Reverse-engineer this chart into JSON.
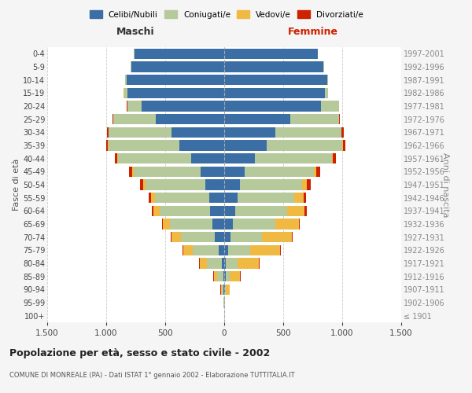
{
  "age_groups": [
    "100+",
    "95-99",
    "90-94",
    "85-89",
    "80-84",
    "75-79",
    "70-74",
    "65-69",
    "60-64",
    "55-59",
    "50-54",
    "45-49",
    "40-44",
    "35-39",
    "30-34",
    "25-29",
    "20-24",
    "15-19",
    "10-14",
    "5-9",
    "0-4"
  ],
  "birth_years": [
    "≤ 1901",
    "1902-1906",
    "1907-1911",
    "1912-1916",
    "1917-1921",
    "1922-1926",
    "1927-1931",
    "1932-1936",
    "1937-1941",
    "1942-1946",
    "1947-1951",
    "1952-1956",
    "1957-1961",
    "1962-1966",
    "1967-1971",
    "1972-1976",
    "1977-1981",
    "1982-1986",
    "1987-1991",
    "1992-1996",
    "1997-2001"
  ],
  "maschi": {
    "celibi": [
      2,
      2,
      5,
      10,
      20,
      50,
      80,
      100,
      120,
      130,
      160,
      200,
      280,
      380,
      450,
      580,
      700,
      820,
      830,
      790,
      760
    ],
    "coniugati": [
      1,
      3,
      15,
      50,
      130,
      220,
      290,
      360,
      430,
      460,
      510,
      570,
      620,
      600,
      530,
      360,
      120,
      30,
      10,
      5,
      5
    ],
    "vedovi": [
      0,
      1,
      10,
      30,
      60,
      80,
      80,
      60,
      50,
      30,
      20,
      10,
      5,
      5,
      3,
      2,
      2,
      1,
      0,
      0,
      0
    ],
    "divorziati": [
      0,
      0,
      1,
      2,
      3,
      5,
      5,
      10,
      15,
      20,
      25,
      25,
      20,
      15,
      10,
      5,
      3,
      1,
      0,
      0,
      0
    ]
  },
  "femmine": {
    "nubili": [
      2,
      2,
      5,
      10,
      15,
      30,
      50,
      70,
      90,
      110,
      130,
      170,
      260,
      360,
      430,
      560,
      820,
      850,
      870,
      840,
      790
    ],
    "coniugate": [
      1,
      3,
      10,
      35,
      100,
      190,
      270,
      360,
      440,
      480,
      530,
      590,
      650,
      640,
      560,
      410,
      150,
      30,
      10,
      5,
      5
    ],
    "vedove": [
      0,
      3,
      30,
      90,
      180,
      250,
      250,
      200,
      150,
      80,
      40,
      20,
      10,
      8,
      5,
      3,
      2,
      1,
      0,
      0,
      0
    ],
    "divorziate": [
      0,
      0,
      1,
      2,
      4,
      8,
      8,
      12,
      20,
      25,
      30,
      30,
      25,
      20,
      15,
      8,
      3,
      1,
      0,
      0,
      0
    ]
  },
  "colors": {
    "celibi": "#3b6ea5",
    "coniugati": "#b5c99a",
    "vedovi": "#f0b942",
    "divorziati": "#cc2200"
  },
  "xlim": 1500,
  "title": "Popolazione per età, sesso e stato civile - 2002",
  "subtitle": "COMUNE DI MONREALE (PA) - Dati ISTAT 1° gennaio 2002 - Elaborazione TUTTITALIA.IT",
  "ylabel_left": "Fasce di età",
  "ylabel_right": "Anni di nascita",
  "xlabel_left": "Maschi",
  "xlabel_right": "Femmine",
  "bg_color": "#f5f5f5",
  "plot_bg": "#ffffff"
}
